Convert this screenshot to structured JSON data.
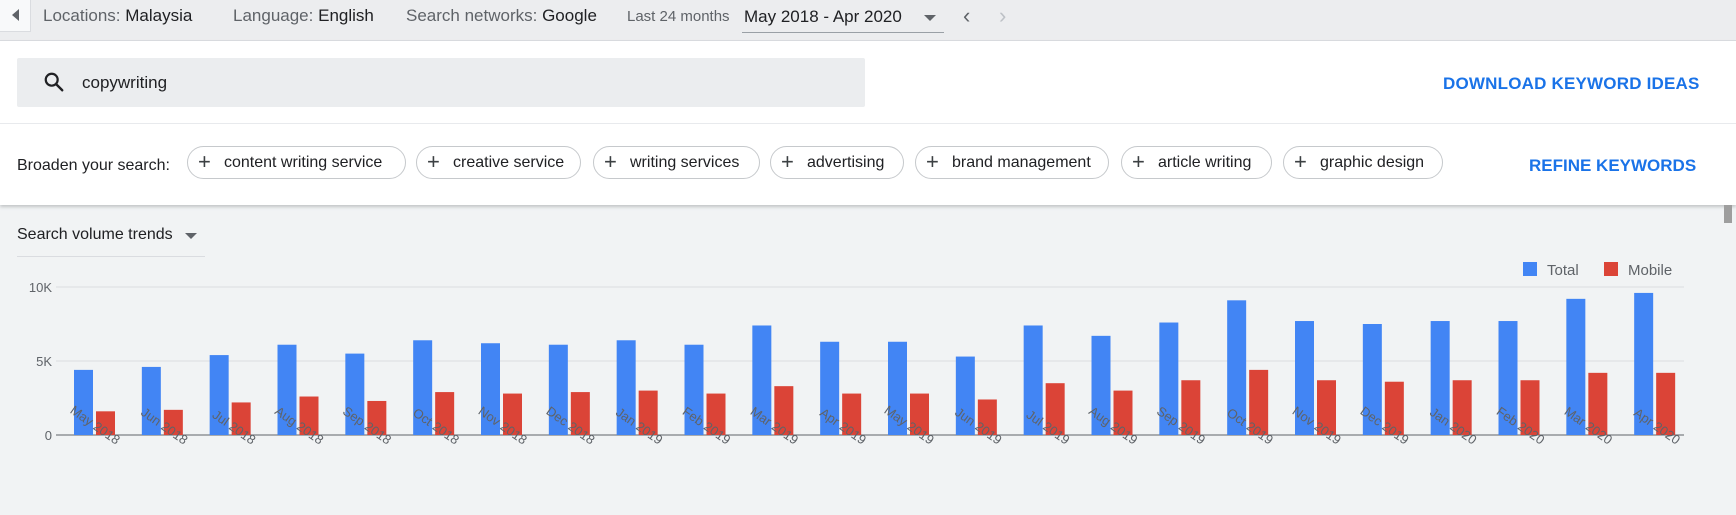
{
  "filters": {
    "locations_label": "Locations:",
    "locations_value": "Malaysia",
    "language_label": "Language:",
    "language_value": "English",
    "networks_label": "Search networks:",
    "networks_value": "Google",
    "period_label": "Last 24 months",
    "date_range": "May 2018 - Apr 2020"
  },
  "search": {
    "query": "copywriting",
    "download_label": "DOWNLOAD KEYWORD IDEAS"
  },
  "broaden": {
    "label": "Broaden your search:",
    "chips": [
      "content writing service",
      "creative service",
      "writing services",
      "advertising",
      "brand management",
      "article writing",
      "graphic design"
    ],
    "refine_label": "REFINE KEYWORDS"
  },
  "chart_section": {
    "selector_label": "Search volume trends"
  },
  "chart_data": {
    "type": "bar",
    "categories": [
      "May 2018",
      "Jun 2018",
      "Jul 2018",
      "Aug 2018",
      "Sep 2018",
      "Oct 2018",
      "Nov 2018",
      "Dec 2018",
      "Jan 2019",
      "Feb 2019",
      "Mar 2019",
      "Apr 2019",
      "May 2019",
      "Jun 2019",
      "Jul 2019",
      "Aug 2019",
      "Sep 2019",
      "Oct 2019",
      "Nov 2019",
      "Dec 2019",
      "Jan 2020",
      "Feb 2020",
      "Mar 2020",
      "Apr 2020"
    ],
    "series": [
      {
        "name": "Total",
        "color": "#4285f4",
        "values": [
          4400,
          4600,
          5400,
          6100,
          5500,
          6400,
          6200,
          6100,
          6400,
          6100,
          7400,
          6300,
          6300,
          5300,
          7400,
          6700,
          7600,
          9100,
          7700,
          7500,
          7700,
          7700,
          9200,
          9600
        ]
      },
      {
        "name": "Mobile",
        "color": "#db4437",
        "values": [
          1600,
          1700,
          2200,
          2600,
          2300,
          2900,
          2800,
          2900,
          3000,
          2800,
          3300,
          2800,
          2800,
          2400,
          3500,
          3000,
          3700,
          4400,
          3700,
          3600,
          3700,
          3700,
          4200,
          4200
        ]
      }
    ],
    "yticks": [
      "0",
      "5K",
      "10K"
    ],
    "ylim": [
      0,
      10000
    ],
    "grid": true,
    "legend_position": "top-right"
  }
}
